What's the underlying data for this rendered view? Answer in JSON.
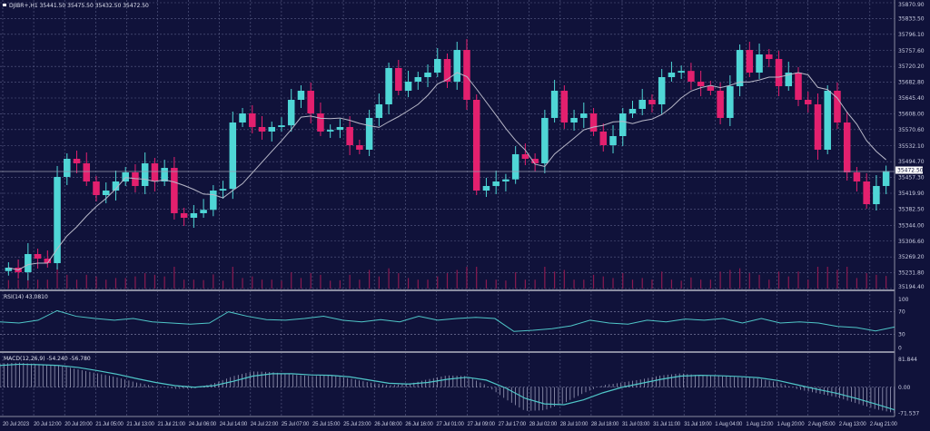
{
  "chart_data": {
    "type": "candlestick",
    "title": "DJIBR+,H1  35441.50 35475.50 35432.50 35472.50",
    "current_price": "35472.50",
    "grid": true,
    "colors": {
      "background": "#10123a",
      "bull": "#4fd6d6",
      "bear": "#e3206e",
      "ma": "#b8b8c8",
      "grid": "#5a5e86",
      "indicator": "#4fc6c8"
    },
    "price_axis": {
      "ylim": [
        35194.4,
        35870.9
      ],
      "ticks": [
        "35870.90",
        "35833.50",
        "35796.10",
        "35757.60",
        "35720.20",
        "35682.80",
        "35645.40",
        "35608.00",
        "35570.60",
        "35532.10",
        "35494.70",
        "35457.30",
        "35419.90",
        "35382.50",
        "35344.00",
        "35306.60",
        "35269.20",
        "35231.80",
        "35194.40"
      ]
    },
    "time_axis": {
      "ticks": [
        "20 Jul 2023",
        "20 Jul 12:00",
        "20 Jul 20:00",
        "21 Jul 05:00",
        "21 Jul 13:00",
        "21 Jul 21:00",
        "24 Jul 06:00",
        "24 Jul 14:00",
        "24 Jul 22:00",
        "25 Jul 07:00",
        "25 Jul 15:00",
        "25 Jul 23:00",
        "26 Jul 08:00",
        "26 Jul 16:00",
        "27 Jul 01:00",
        "27 Jul 09:00",
        "27 Jul 17:00",
        "28 Jul 02:00",
        "28 Jul 10:00",
        "28 Jul 18:00",
        "31 Jul 03:00",
        "31 Jul 11:00",
        "31 Jul 19:00",
        "1 Aug 04:00",
        "1 Aug 12:00",
        "1 Aug 20:00",
        "2 Aug 05:00",
        "2 Aug 13:00",
        "2 Aug 21:00"
      ]
    },
    "close": [
      35243.8,
      35233.1,
      35276.0,
      35265.3,
      35254.5,
      35458.6,
      35501.5,
      35490.8,
      35447.8,
      35415.6,
      35426.3,
      35447.8,
      35469.3,
      35437.1,
      35490.8,
      35447.8,
      35480.0,
      35372.7,
      35361.9,
      35372.7,
      35380.7,
      35426.3,
      35430.3,
      35587.4,
      35608.9,
      35576.7,
      35566.0,
      35576.7,
      35580.7,
      35641.1,
      35662.6,
      35608.9,
      35566.0,
      35570.0,
      35576.7,
      35533.7,
      35523.0,
      35598.2,
      35630.4,
      35716.3,
      35662.6,
      35684.1,
      35694.8,
      35705.5,
      35737.7,
      35684.1,
      35759.2,
      35641.1,
      35426.3,
      35437.1,
      35447.8,
      35452.8,
      35512.3,
      35501.5,
      35490.8,
      35598.2,
      35662.6,
      35587.4,
      35598.2,
      35608.9,
      35566.0,
      35533.7,
      35555.2,
      35608.9,
      35619.6,
      35641.1,
      35630.4,
      35694.8,
      35705.5,
      35709.5,
      35684.1,
      35673.3,
      35662.6,
      35598.2,
      35673.3,
      35759.2,
      35705.5,
      35748.5,
      35737.7,
      35673.3,
      35705.5,
      35641.1,
      35630.4,
      35523.0,
      35662.6,
      35587.4,
      35469.3,
      35447.8,
      35394.1,
      35437.1,
      35472.5
    ],
    "rsi": {
      "label": "RSI(14) 43.0810",
      "levels": [
        "100",
        "70",
        "30",
        "0"
      ],
      "ylim": [
        0,
        100
      ],
      "values": [
        52,
        50,
        55,
        72,
        62,
        58,
        55,
        58,
        52,
        50,
        48,
        50,
        70,
        62,
        56,
        55,
        58,
        62,
        55,
        52,
        56,
        52,
        62,
        55,
        58,
        60,
        58,
        35,
        37,
        40,
        45,
        55,
        50,
        48,
        55,
        52,
        57,
        55,
        58,
        50,
        58,
        50,
        52,
        50,
        44,
        42,
        36,
        43
      ]
    },
    "macd": {
      "label": "MACD(12,26,9) -54.240 -56.780",
      "ticks": [
        "81.844",
        "0.00",
        "-71.537"
      ],
      "ylim": [
        -71.537,
        81.844
      ],
      "main": [
        60,
        62,
        58,
        55,
        45,
        35,
        25,
        12,
        2,
        -4,
        -3,
        10,
        28,
        40,
        38,
        32,
        28,
        30,
        22,
        12,
        5,
        8,
        20,
        30,
        28,
        5,
        -30,
        -60,
        -58,
        -40,
        -15,
        5,
        12,
        20,
        30,
        35,
        30,
        28,
        25,
        22,
        12,
        -5,
        -15,
        -25,
        -40,
        -55,
        -65
      ],
      "signal": [
        55,
        58,
        57,
        55,
        50,
        42,
        33,
        22,
        12,
        4,
        0,
        4,
        15,
        28,
        34,
        34,
        31,
        30,
        26,
        18,
        10,
        8,
        12,
        20,
        25,
        18,
        -2,
        -28,
        -42,
        -44,
        -32,
        -14,
        0,
        10,
        20,
        28,
        30,
        29,
        27,
        24,
        17,
        6,
        -5,
        -15,
        -28,
        -42,
        -57
      ]
    }
  }
}
